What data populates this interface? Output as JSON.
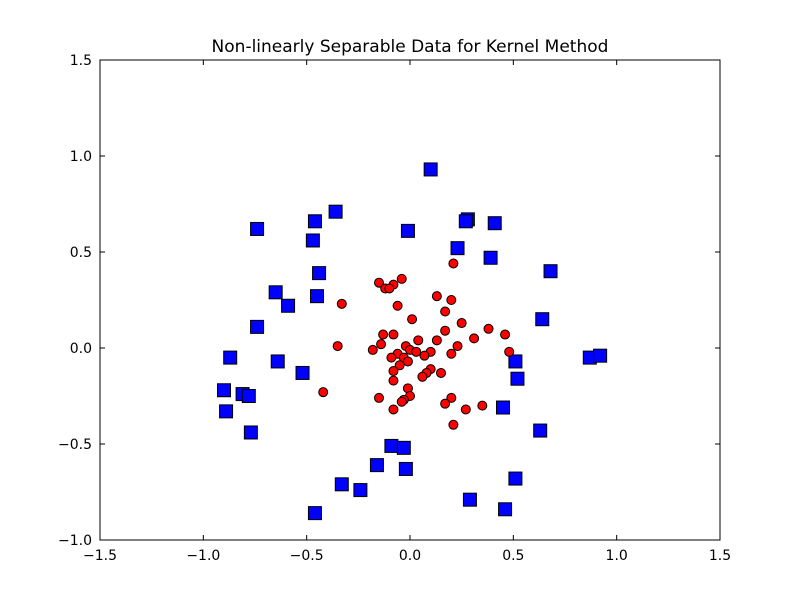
{
  "chart_data": {
    "type": "scatter",
    "title": "Non-linearly Separable Data for Kernel Method",
    "xlabel": "",
    "ylabel": "",
    "xlim": [
      -1.5,
      1.5
    ],
    "ylim": [
      -1.0,
      1.5
    ],
    "grid": false,
    "xticks": [
      {
        "value": -1.5,
        "label": "−1.5"
      },
      {
        "value": -1.0,
        "label": "−1.0"
      },
      {
        "value": -0.5,
        "label": "−0.5"
      },
      {
        "value": 0.0,
        "label": "0.0"
      },
      {
        "value": 0.5,
        "label": "0.5"
      },
      {
        "value": 1.0,
        "label": "1.0"
      },
      {
        "value": 1.5,
        "label": "1.5"
      }
    ],
    "yticks": [
      {
        "value": -1.0,
        "label": "−1.0"
      },
      {
        "value": -0.5,
        "label": "−0.5"
      },
      {
        "value": 0.0,
        "label": "0.0"
      },
      {
        "value": 0.5,
        "label": "0.5"
      },
      {
        "value": 1.0,
        "label": "1.0"
      },
      {
        "value": 1.5,
        "label": "1.5"
      }
    ],
    "series": [
      {
        "marker": "square",
        "color": "#0000ff",
        "points": [
          [
            0.1,
            0.93
          ],
          [
            -0.36,
            0.71
          ],
          [
            0.28,
            0.67
          ],
          [
            0.27,
            0.66
          ],
          [
            0.41,
            0.65
          ],
          [
            -0.46,
            0.66
          ],
          [
            -0.74,
            0.62
          ],
          [
            -0.01,
            0.61
          ],
          [
            -0.47,
            0.56
          ],
          [
            0.23,
            0.52
          ],
          [
            0.39,
            0.47
          ],
          [
            0.68,
            0.4
          ],
          [
            -0.44,
            0.39
          ],
          [
            -0.65,
            0.29
          ],
          [
            -0.45,
            0.27
          ],
          [
            -0.59,
            0.22
          ],
          [
            0.64,
            0.15
          ],
          [
            -0.74,
            0.11
          ],
          [
            -0.87,
            -0.05
          ],
          [
            -0.64,
            -0.07
          ],
          [
            0.51,
            -0.07
          ],
          [
            0.87,
            -0.05
          ],
          [
            0.92,
            -0.04
          ],
          [
            -0.52,
            -0.13
          ],
          [
            0.52,
            -0.16
          ],
          [
            -0.9,
            -0.22
          ],
          [
            -0.81,
            -0.24
          ],
          [
            -0.78,
            -0.25
          ],
          [
            0.45,
            -0.31
          ],
          [
            -0.89,
            -0.33
          ],
          [
            -0.77,
            -0.44
          ],
          [
            0.63,
            -0.43
          ],
          [
            -0.09,
            -0.51
          ],
          [
            -0.03,
            -0.52
          ],
          [
            -0.16,
            -0.61
          ],
          [
            -0.02,
            -0.63
          ],
          [
            0.51,
            -0.68
          ],
          [
            -0.33,
            -0.71
          ],
          [
            -0.24,
            -0.74
          ],
          [
            0.29,
            -0.79
          ],
          [
            0.46,
            -0.84
          ],
          [
            -0.46,
            -0.86
          ]
        ]
      },
      {
        "marker": "circle",
        "color": "#ff0000",
        "points": [
          [
            0.21,
            0.44
          ],
          [
            -0.04,
            0.36
          ],
          [
            -0.08,
            0.33
          ],
          [
            -0.15,
            0.34
          ],
          [
            -0.12,
            0.31
          ],
          [
            -0.1,
            0.31
          ],
          [
            0.13,
            0.27
          ],
          [
            0.2,
            0.25
          ],
          [
            -0.33,
            0.23
          ],
          [
            -0.06,
            0.22
          ],
          [
            0.17,
            0.19
          ],
          [
            0.01,
            0.15
          ],
          [
            0.25,
            0.13
          ],
          [
            0.38,
            0.1
          ],
          [
            0.17,
            0.09
          ],
          [
            -0.08,
            0.07
          ],
          [
            0.46,
            0.07
          ],
          [
            -0.13,
            0.07
          ],
          [
            0.31,
            0.05
          ],
          [
            0.13,
            0.04
          ],
          [
            0.04,
            0.04
          ],
          [
            -0.14,
            0.02
          ],
          [
            0.23,
            0.01
          ],
          [
            -0.35,
            0.01
          ],
          [
            -0.02,
            0.01
          ],
          [
            0.0,
            -0.01
          ],
          [
            -0.18,
            -0.01
          ],
          [
            0.48,
            -0.02
          ],
          [
            0.03,
            -0.02
          ],
          [
            0.1,
            -0.02
          ],
          [
            -0.06,
            -0.03
          ],
          [
            0.2,
            -0.03
          ],
          [
            0.07,
            -0.04
          ],
          [
            -0.03,
            -0.05
          ],
          [
            -0.09,
            -0.05
          ],
          [
            -0.01,
            -0.07
          ],
          [
            -0.05,
            -0.09
          ],
          [
            0.1,
            -0.11
          ],
          [
            0.08,
            -0.13
          ],
          [
            -0.08,
            -0.12
          ],
          [
            0.15,
            -0.13
          ],
          [
            0.06,
            -0.15
          ],
          [
            -0.08,
            -0.17
          ],
          [
            -0.01,
            -0.21
          ],
          [
            -0.42,
            -0.23
          ],
          [
            0.0,
            -0.25
          ],
          [
            0.2,
            -0.26
          ],
          [
            -0.15,
            -0.26
          ],
          [
            -0.03,
            -0.27
          ],
          [
            -0.04,
            -0.28
          ],
          [
            0.17,
            -0.29
          ],
          [
            0.35,
            -0.3
          ],
          [
            0.27,
            -0.32
          ],
          [
            -0.08,
            -0.32
          ],
          [
            0.21,
            -0.4
          ]
        ]
      }
    ]
  }
}
